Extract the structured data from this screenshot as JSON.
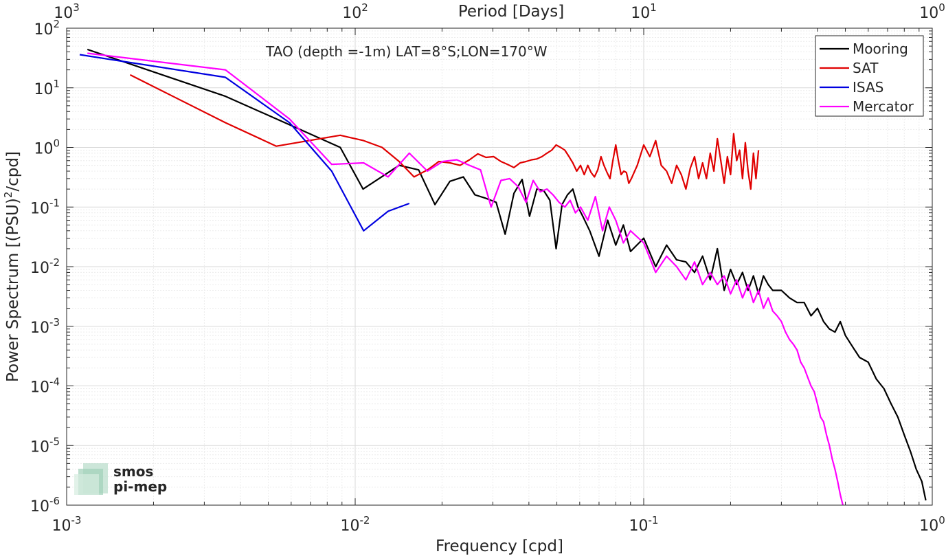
{
  "chart_data": {
    "type": "line",
    "title": "TAO (depth =-1m) LAT=8°S;LON=170°W",
    "xlabel": "Frequency [cpd]",
    "ylabel_main": "Power Spectrum [(PSU)",
    "ylabel_sup": "2",
    "ylabel_tail": "/cpd]",
    "top_xlabel": "Period [Days]",
    "x_scale": "log",
    "y_scale": "log",
    "xlim": [
      0.001,
      1
    ],
    "ylim": [
      1e-06,
      100
    ],
    "grid": true,
    "legend_position": "top-right",
    "x_ticks": [
      {
        "base": "10",
        "exp": "-3",
        "value": 0.001
      },
      {
        "base": "10",
        "exp": "-2",
        "value": 0.01
      },
      {
        "base": "10",
        "exp": "-1",
        "value": 0.1
      },
      {
        "base": "10",
        "exp": "0",
        "value": 1
      }
    ],
    "top_ticks": [
      {
        "base": "10",
        "exp": "3",
        "value": 0.001
      },
      {
        "base": "10",
        "exp": "2",
        "value": 0.01
      },
      {
        "base": "10",
        "exp": "1",
        "value": 0.1
      },
      {
        "base": "10",
        "exp": "0",
        "value": 1
      }
    ],
    "y_ticks": [
      {
        "base": "10",
        "exp": "2",
        "value": 100
      },
      {
        "base": "10",
        "exp": "1",
        "value": 10
      },
      {
        "base": "10",
        "exp": "0",
        "value": 1
      },
      {
        "base": "10",
        "exp": "-1",
        "value": 0.1
      },
      {
        "base": "10",
        "exp": "-2",
        "value": 0.01
      },
      {
        "base": "10",
        "exp": "-3",
        "value": 0.001
      },
      {
        "base": "10",
        "exp": "-4",
        "value": 0.0001
      },
      {
        "base": "10",
        "exp": "-5",
        "value": 1e-05
      },
      {
        "base": "10",
        "exp": "-6",
        "value": 1e-06
      }
    ],
    "series": [
      {
        "name": "Mooring",
        "color": "#000000",
        "x": [
          0.00118,
          0.00355,
          0.00592,
          0.00888,
          0.01065,
          0.0142,
          0.0166,
          0.0189,
          0.0213,
          0.0237,
          0.026,
          0.0284,
          0.0308,
          0.0331,
          0.0355,
          0.0379,
          0.0402,
          0.0426,
          0.045,
          0.0473,
          0.0497,
          0.0521,
          0.0544,
          0.0568,
          0.0592,
          0.0615,
          0.065,
          0.07,
          0.075,
          0.08,
          0.085,
          0.09,
          0.1,
          0.11,
          0.12,
          0.13,
          0.14,
          0.15,
          0.16,
          0.17,
          0.18,
          0.19,
          0.2,
          0.21,
          0.22,
          0.23,
          0.24,
          0.25,
          0.26,
          0.27,
          0.28,
          0.3,
          0.32,
          0.34,
          0.36,
          0.38,
          0.4,
          0.42,
          0.44,
          0.46,
          0.48,
          0.5,
          0.53,
          0.56,
          0.6,
          0.64,
          0.68,
          0.72,
          0.76,
          0.8,
          0.84,
          0.88,
          0.92,
          0.95
        ],
        "y": [
          44,
          7.2,
          2.4,
          1.0,
          0.2,
          0.5,
          0.42,
          0.11,
          0.27,
          0.32,
          0.16,
          0.14,
          0.12,
          0.035,
          0.17,
          0.29,
          0.07,
          0.2,
          0.19,
          0.13,
          0.02,
          0.11,
          0.16,
          0.2,
          0.1,
          0.07,
          0.04,
          0.015,
          0.06,
          0.023,
          0.05,
          0.018,
          0.03,
          0.01,
          0.023,
          0.013,
          0.012,
          0.008,
          0.015,
          0.006,
          0.02,
          0.004,
          0.009,
          0.005,
          0.008,
          0.004,
          0.007,
          0.0035,
          0.007,
          0.005,
          0.004,
          0.004,
          0.003,
          0.0025,
          0.0025,
          0.0015,
          0.002,
          0.0012,
          0.0009,
          0.0008,
          0.0012,
          0.0007,
          0.00045,
          0.0003,
          0.00025,
          0.00013,
          9e-05,
          5e-05,
          3e-05,
          1.5e-05,
          8e-06,
          4e-06,
          2.5e-06,
          1.2e-06
        ]
      },
      {
        "name": "SAT",
        "color": "#e00000",
        "x": [
          0.00166,
          0.00355,
          0.00533,
          0.00888,
          0.0107,
          0.0124,
          0.0142,
          0.016,
          0.0178,
          0.0195,
          0.0213,
          0.0231,
          0.0249,
          0.0266,
          0.0284,
          0.0302,
          0.032,
          0.0337,
          0.0355,
          0.0373,
          0.0391,
          0.0409,
          0.0426,
          0.0444,
          0.0462,
          0.048,
          0.0497,
          0.0515,
          0.0533,
          0.0551,
          0.0568,
          0.0586,
          0.0604,
          0.0622,
          0.064,
          0.0657,
          0.0675,
          0.0693,
          0.0711,
          0.0728,
          0.0746,
          0.0764,
          0.0782,
          0.08,
          0.0817,
          0.0835,
          0.0853,
          0.0871,
          0.0888,
          0.0906,
          0.095,
          0.1,
          0.105,
          0.11,
          0.115,
          0.12,
          0.125,
          0.13,
          0.135,
          0.14,
          0.145,
          0.15,
          0.155,
          0.16,
          0.165,
          0.17,
          0.175,
          0.18,
          0.185,
          0.19,
          0.195,
          0.2,
          0.205,
          0.21,
          0.215,
          0.22,
          0.225,
          0.23,
          0.235,
          0.24,
          0.245,
          0.25
        ],
        "y": [
          16.5,
          2.6,
          1.05,
          1.6,
          1.3,
          1.0,
          0.58,
          0.32,
          0.42,
          0.58,
          0.55,
          0.5,
          0.62,
          0.78,
          0.68,
          0.7,
          0.58,
          0.52,
          0.46,
          0.55,
          0.58,
          0.62,
          0.64,
          0.7,
          0.8,
          0.9,
          1.1,
          1.0,
          0.9,
          0.7,
          0.55,
          0.4,
          0.5,
          0.35,
          0.5,
          0.38,
          0.32,
          0.42,
          0.7,
          0.5,
          0.38,
          0.3,
          0.6,
          1.1,
          0.6,
          0.35,
          0.4,
          0.38,
          0.25,
          0.3,
          0.5,
          1.1,
          0.7,
          1.3,
          0.5,
          0.4,
          0.25,
          0.5,
          0.35,
          0.2,
          0.45,
          0.7,
          0.3,
          0.55,
          0.3,
          0.8,
          0.4,
          1.4,
          0.6,
          0.25,
          0.7,
          0.35,
          1.7,
          0.6,
          0.9,
          0.3,
          1.2,
          0.4,
          0.2,
          0.8,
          0.3,
          0.9
        ]
      },
      {
        "name": "ISAS",
        "color": "#0000e0",
        "x": [
          0.00111,
          0.00355,
          0.00592,
          0.00829,
          0.0107,
          0.013,
          0.0154
        ],
        "y": [
          36,
          15,
          2.6,
          0.4,
          0.04,
          0.085,
          0.115
        ]
      },
      {
        "name": "Mercator",
        "color": "#ff00ff",
        "x": [
          0.00118,
          0.00355,
          0.00592,
          0.00829,
          0.0107,
          0.013,
          0.0154,
          0.0178,
          0.0201,
          0.0225,
          0.0249,
          0.0272,
          0.0296,
          0.032,
          0.0343,
          0.0367,
          0.0391,
          0.0414,
          0.0438,
          0.0462,
          0.0485,
          0.0509,
          0.0533,
          0.0556,
          0.058,
          0.0604,
          0.064,
          0.068,
          0.072,
          0.076,
          0.08,
          0.085,
          0.09,
          0.1,
          0.11,
          0.12,
          0.13,
          0.14,
          0.15,
          0.16,
          0.17,
          0.18,
          0.19,
          0.2,
          0.21,
          0.22,
          0.23,
          0.24,
          0.25,
          0.26,
          0.27,
          0.28,
          0.29,
          0.3,
          0.31,
          0.32,
          0.33,
          0.34,
          0.35,
          0.36,
          0.37,
          0.38,
          0.39,
          0.4,
          0.41,
          0.42,
          0.43,
          0.44,
          0.45,
          0.46,
          0.47,
          0.48,
          0.49
        ],
        "y": [
          38,
          20,
          3.0,
          0.52,
          0.55,
          0.32,
          0.8,
          0.4,
          0.58,
          0.62,
          0.5,
          0.42,
          0.1,
          0.28,
          0.3,
          0.22,
          0.12,
          0.28,
          0.18,
          0.2,
          0.16,
          0.12,
          0.1,
          0.13,
          0.08,
          0.1,
          0.06,
          0.15,
          0.04,
          0.1,
          0.06,
          0.025,
          0.04,
          0.025,
          0.008,
          0.015,
          0.01,
          0.006,
          0.012,
          0.005,
          0.008,
          0.005,
          0.007,
          0.0035,
          0.006,
          0.003,
          0.005,
          0.0025,
          0.004,
          0.002,
          0.003,
          0.0018,
          0.0015,
          0.0012,
          0.0008,
          0.0006,
          0.0005,
          0.0004,
          0.00025,
          0.0002,
          0.00014,
          0.0001,
          8e-05,
          5e-05,
          3e-05,
          2.5e-05,
          1.5e-05,
          1e-05,
          6e-06,
          4e-06,
          2.5e-06,
          1.5e-06,
          1e-06
        ]
      }
    ]
  },
  "logo": {
    "line1": "smos",
    "line2": "pi-mep",
    "color": "#7fbf9f"
  }
}
